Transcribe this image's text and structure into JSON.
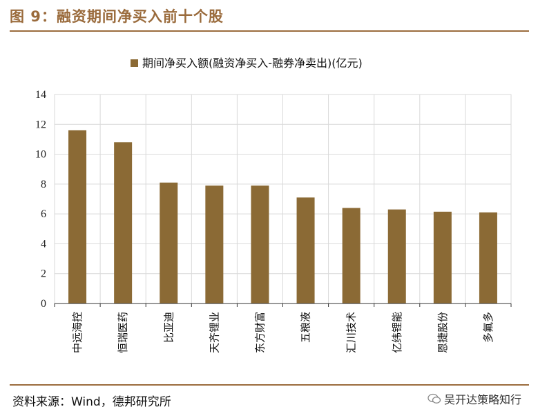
{
  "figure": {
    "title": "图 9：融资期间净买入前十个股",
    "source": "资料来源：Wind，德邦研究所",
    "watermark": "吴开达策略知行"
  },
  "colors": {
    "accent": "#9a6b3c",
    "bar": "#8b6a35",
    "grid": "#d9d9d9"
  },
  "chart_data": {
    "type": "bar",
    "categories": [
      "中远海控",
      "恒瑞医药",
      "比亚迪",
      "天齐锂业",
      "东方财富",
      "五粮液",
      "汇川技术",
      "亿纬锂能",
      "恩捷股份",
      "多氟多"
    ],
    "series": [
      {
        "name": "期间净买入额(融资净买入-融券净卖出)(亿元)",
        "values": [
          11.6,
          10.8,
          8.1,
          7.9,
          7.9,
          7.1,
          6.4,
          6.3,
          6.15,
          6.1
        ]
      }
    ],
    "yticks": [
      "0",
      "2",
      "4",
      "6",
      "8",
      "10",
      "12",
      "14"
    ],
    "ylim": [
      0,
      14
    ],
    "grid": true,
    "legend_position": "top-center"
  }
}
